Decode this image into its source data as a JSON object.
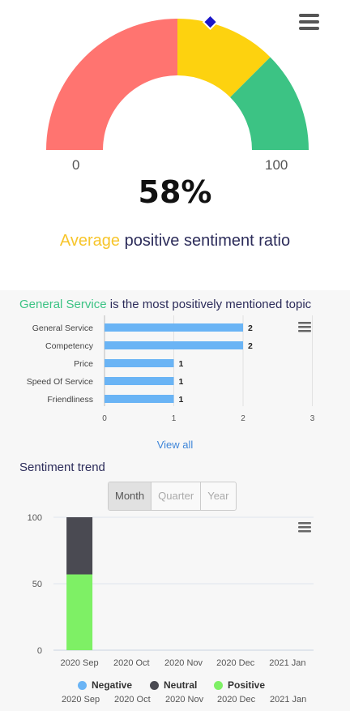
{
  "gauge": {
    "min_label": "0",
    "max_label": "100",
    "value_text": "58%",
    "value": 58,
    "caption_highlight": "Average",
    "caption_rest": " positive sentiment ratio",
    "bands": [
      {
        "from": 0,
        "to": 50,
        "color": "#ff7470"
      },
      {
        "from": 50,
        "to": 75,
        "color": "#fdd20f"
      },
      {
        "from": 75,
        "to": 100,
        "color": "#3cc384"
      }
    ],
    "marker_color": "#1b17c8"
  },
  "topics": {
    "title_highlight": "General Service",
    "title_rest": " is the most positively mentioned topic",
    "view_all_label": "View all"
  },
  "trend": {
    "title": "Sentiment trend",
    "tabs": [
      "Month",
      "Quarter",
      "Year"
    ],
    "active_tab": "Month",
    "navigator_labels": [
      "2020 Sep",
      "2020 Oct",
      "2020 Nov",
      "2020 Dec",
      "2021 Jan"
    ]
  },
  "icons": {
    "menu": "hamburger-menu-icon"
  },
  "chart_data": [
    {
      "type": "bar",
      "orientation": "horizontal",
      "categories": [
        "General Service",
        "Competency",
        "Price",
        "Speed Of Service",
        "Friendliness"
      ],
      "values": [
        2,
        2,
        1,
        1,
        1
      ],
      "xlim": [
        0,
        3
      ],
      "x_ticks": [
        "0",
        "1",
        "2",
        "3"
      ],
      "color": "#6ab4f5",
      "grid": true
    },
    {
      "type": "bar",
      "stacked": true,
      "categories": [
        "2020 Sep",
        "2020 Oct",
        "2020 Nov",
        "2020 Dec",
        "2021 Jan"
      ],
      "series": [
        {
          "name": "Negative",
          "values": [
            0,
            0,
            0,
            0,
            0
          ],
          "color": "#6ab4f5"
        },
        {
          "name": "Neutral",
          "values": [
            43,
            0,
            0,
            0,
            0
          ],
          "color": "#4a4a52"
        },
        {
          "name": "Positive",
          "values": [
            57,
            0,
            0,
            0,
            0
          ],
          "color": "#7ef065"
        }
      ],
      "ylim": [
        0,
        100
      ],
      "y_ticks": [
        "0",
        "50",
        "100"
      ],
      "legend": "bottom",
      "grid": true
    }
  ]
}
